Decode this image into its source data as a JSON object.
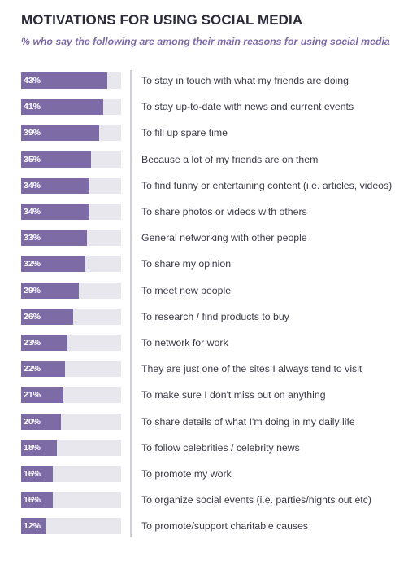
{
  "chart_data": {
    "type": "bar",
    "title": "MOTIVATIONS FOR USING SOCIAL MEDIA",
    "subtitle": "% who say the following are among their main reasons for using social media",
    "orientation": "horizontal",
    "xlim": [
      0,
      50
    ],
    "categories": [
      "To stay in touch with what my friends are doing",
      "To stay up-to-date with news and current events",
      "To fill up spare time",
      "Because a lot of my friends are on them",
      "To find funny or entertaining content (i.e. articles, videos)",
      "To share photos or videos with others",
      "General networking with other people",
      "To share my opinion",
      "To meet new people",
      "To research / find products to buy",
      "To network for work",
      "They are just one of the sites I always tend to visit",
      "To make sure I don't miss out on anything",
      "To share details of what I'm doing in my daily life",
      "To follow celebrities / celebrity news",
      "To promote my work",
      "To organize social events (i.e. parties/nights out etc)",
      "To promote/support charitable causes"
    ],
    "values": [
      43,
      41,
      39,
      35,
      34,
      34,
      33,
      32,
      29,
      26,
      23,
      22,
      21,
      20,
      18,
      16,
      16,
      12
    ],
    "value_labels": [
      "43%",
      "41%",
      "39%",
      "35%",
      "34%",
      "34%",
      "33%",
      "32%",
      "29%",
      "26%",
      "23%",
      "22%",
      "21%",
      "20%",
      "18%",
      "16%",
      "16%",
      "12%"
    ],
    "colors": {
      "bar": "#7d6ba6",
      "track": "#e8e7ee",
      "title": "#2b2b3a",
      "subtitle": "#7d6ba6",
      "divider": "#cfcfd8"
    },
    "grid": false,
    "legend": "none"
  }
}
